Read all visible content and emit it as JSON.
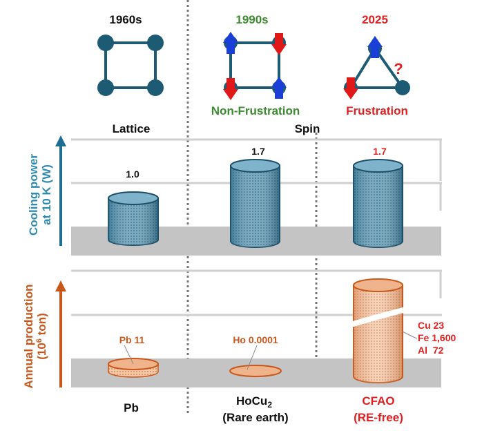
{
  "eras": [
    {
      "year": "1960s",
      "color": "#111111"
    },
    {
      "year": "1990s",
      "color": "#3a8a2e",
      "caption": "Non-Frustration"
    },
    {
      "year": "2025",
      "color": "#e02020",
      "caption": "Frustration",
      "question": "?"
    }
  ],
  "categories": {
    "lattice": "Lattice",
    "spin": "Spin"
  },
  "cooling_panel": {
    "axis_label_line1": "Cooling power",
    "axis_label_line2": "at 10 K (W)",
    "color": "#1f6e92",
    "values": [
      "1.0",
      "1.7",
      "1.7"
    ]
  },
  "production_panel": {
    "axis_label_line1": "Annual production",
    "axis_label_line2": "(10",
    "axis_label_sup": "6",
    "axis_label_end": " ton)",
    "color": "#c8571c",
    "pb_label": "Pb 11",
    "ho_label": "Ho 0.0001",
    "cfao_labels": [
      "Cu 23",
      "Fe 1,600",
      "Al  72"
    ]
  },
  "materials": [
    {
      "name": "Pb",
      "sub": "",
      "color": "#111111"
    },
    {
      "name": "HoCu",
      "subscript": "2",
      "sub": "(Rare earth)",
      "color": "#111111"
    },
    {
      "name": "CFAO",
      "sub": "(RE-free)",
      "color": "#e02020"
    }
  ],
  "colors": {
    "spin_up": "#1a3fd6",
    "spin_down": "#e01818",
    "node": "#1d5a74",
    "band": "#c4c4c4"
  }
}
